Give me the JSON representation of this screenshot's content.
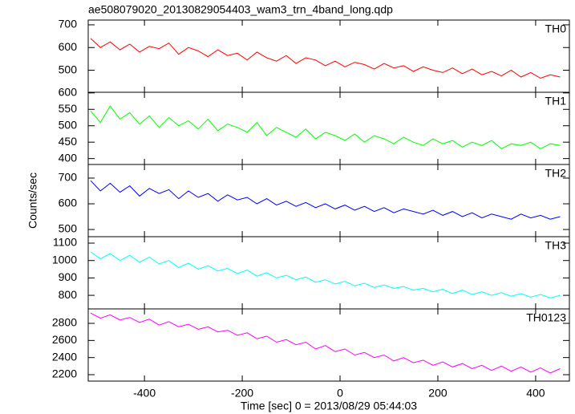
{
  "chart_data": [
    {
      "type": "line",
      "title": "ae508079020_20130829054403_wam3_trn_4band_long.qdp",
      "x": [
        -510,
        -490,
        -470,
        -450,
        -430,
        -410,
        -390,
        -370,
        -350,
        -330,
        -310,
        -290,
        -270,
        -250,
        -230,
        -210,
        -190,
        -170,
        -150,
        -130,
        -110,
        -90,
        -70,
        -50,
        -30,
        -10,
        10,
        30,
        50,
        70,
        90,
        110,
        130,
        150,
        170,
        190,
        210,
        230,
        250,
        270,
        290,
        310,
        330,
        350,
        370,
        390,
        410,
        430,
        450
      ],
      "series": [
        {
          "name": "TH0",
          "color": "#ff0000",
          "values": [
            640,
            600,
            625,
            590,
            615,
            580,
            605,
            595,
            620,
            570,
            600,
            585,
            560,
            590,
            565,
            575,
            545,
            580,
            555,
            540,
            565,
            530,
            555,
            545,
            520,
            540,
            515,
            535,
            525,
            505,
            530,
            510,
            520,
            495,
            515,
            500,
            490,
            510,
            485,
            505,
            480,
            495,
            475,
            500,
            470,
            490,
            465,
            480,
            470
          ]
        }
      ],
      "xlim": [
        -515,
        469
      ],
      "ylim": [
        403,
        721
      ],
      "yticks": [
        500,
        600,
        700
      ]
    },
    {
      "type": "line",
      "x": [
        -510,
        -490,
        -470,
        -450,
        -430,
        -410,
        -390,
        -370,
        -350,
        -330,
        -310,
        -290,
        -270,
        -250,
        -230,
        -210,
        -190,
        -170,
        -150,
        -130,
        -110,
        -90,
        -70,
        -50,
        -30,
        -10,
        10,
        30,
        50,
        70,
        90,
        110,
        130,
        150,
        170,
        190,
        210,
        230,
        250,
        270,
        290,
        310,
        330,
        350,
        370,
        390,
        410,
        430,
        450
      ],
      "series": [
        {
          "name": "TH1",
          "color": "#00ff00",
          "values": [
            545,
            510,
            560,
            520,
            540,
            505,
            530,
            495,
            525,
            500,
            515,
            490,
            520,
            485,
            505,
            495,
            480,
            510,
            470,
            495,
            480,
            465,
            490,
            460,
            480,
            470,
            455,
            475,
            450,
            470,
            460,
            445,
            465,
            450,
            440,
            460,
            445,
            455,
            435,
            450,
            440,
            455,
            430,
            445,
            440,
            450,
            430,
            445,
            440
          ]
        }
      ],
      "xlim": [
        -515,
        469
      ],
      "ylim": [
        382,
        602
      ],
      "yticks": [
        400,
        450,
        500,
        550,
        600
      ]
    },
    {
      "type": "line",
      "ylabel": "Counts/sec",
      "x": [
        -510,
        -490,
        -470,
        -450,
        -430,
        -410,
        -390,
        -370,
        -350,
        -330,
        -310,
        -290,
        -270,
        -250,
        -230,
        -210,
        -190,
        -170,
        -150,
        -130,
        -110,
        -90,
        -70,
        -50,
        -30,
        -10,
        10,
        30,
        50,
        70,
        90,
        110,
        130,
        150,
        170,
        190,
        210,
        230,
        250,
        270,
        290,
        310,
        330,
        350,
        370,
        390,
        410,
        430,
        450
      ],
      "series": [
        {
          "name": "TH2",
          "color": "#0000ff",
          "values": [
            690,
            650,
            680,
            645,
            670,
            630,
            660,
            640,
            655,
            620,
            650,
            625,
            640,
            610,
            635,
            615,
            625,
            600,
            620,
            595,
            610,
            590,
            605,
            585,
            600,
            580,
            595,
            575,
            590,
            570,
            585,
            565,
            580,
            570,
            560,
            575,
            555,
            570,
            550,
            565,
            545,
            560,
            550,
            540,
            560,
            545,
            555,
            540,
            550
          ]
        }
      ],
      "xlim": [
        -515,
        469
      ],
      "ylim": [
        472,
        753
      ],
      "yticks": [
        500,
        600,
        700
      ]
    },
    {
      "type": "line",
      "x": [
        -510,
        -490,
        -470,
        -450,
        -430,
        -410,
        -390,
        -370,
        -350,
        -330,
        -310,
        -290,
        -270,
        -250,
        -230,
        -210,
        -190,
        -170,
        -150,
        -130,
        -110,
        -90,
        -70,
        -50,
        -30,
        -10,
        10,
        30,
        50,
        70,
        90,
        110,
        130,
        150,
        170,
        190,
        210,
        230,
        250,
        270,
        290,
        310,
        330,
        350,
        370,
        390,
        410,
        430,
        450
      ],
      "series": [
        {
          "name": "TH3",
          "color": "#00ffff",
          "values": [
            1050,
            1010,
            1040,
            1000,
            1030,
            990,
            1020,
            980,
            1000,
            960,
            985,
            950,
            970,
            940,
            955,
            925,
            945,
            910,
            930,
            900,
            915,
            890,
            905,
            875,
            890,
            865,
            880,
            855,
            870,
            845,
            860,
            840,
            850,
            830,
            840,
            820,
            835,
            810,
            830,
            805,
            820,
            800,
            815,
            795,
            810,
            790,
            805,
            785,
            800
          ]
        }
      ],
      "xlim": [
        -515,
        469
      ],
      "ylim": [
        722,
        1137
      ],
      "yticks": [
        800,
        900,
        1000,
        1100
      ]
    },
    {
      "type": "line",
      "xlabel": "Time [sec] 0 = 2013/08/29 05:44:03",
      "x": [
        -510,
        -490,
        -470,
        -450,
        -430,
        -410,
        -390,
        -370,
        -350,
        -330,
        -310,
        -290,
        -270,
        -250,
        -230,
        -210,
        -190,
        -170,
        -150,
        -130,
        -110,
        -90,
        -70,
        -50,
        -30,
        -10,
        10,
        30,
        50,
        70,
        90,
        110,
        130,
        150,
        170,
        190,
        210,
        230,
        250,
        270,
        290,
        310,
        330,
        350,
        370,
        390,
        410,
        430,
        450
      ],
      "series": [
        {
          "name": "TH0123",
          "color": "#ff00ff",
          "values": [
            2920,
            2860,
            2900,
            2840,
            2870,
            2810,
            2850,
            2780,
            2820,
            2760,
            2790,
            2730,
            2760,
            2700,
            2720,
            2660,
            2690,
            2620,
            2650,
            2580,
            2610,
            2550,
            2580,
            2500,
            2540,
            2470,
            2500,
            2430,
            2460,
            2400,
            2430,
            2360,
            2400,
            2340,
            2370,
            2310,
            2350,
            2290,
            2330,
            2270,
            2310,
            2250,
            2300,
            2240,
            2290,
            2230,
            2280,
            2220,
            2270
          ]
        }
      ],
      "xlim": [
        -515,
        469
      ],
      "xticks": [
        -400,
        -200,
        0,
        200,
        400
      ],
      "ylim": [
        2125,
        2969
      ],
      "yticks": [
        2200,
        2400,
        2600,
        2800
      ]
    }
  ]
}
